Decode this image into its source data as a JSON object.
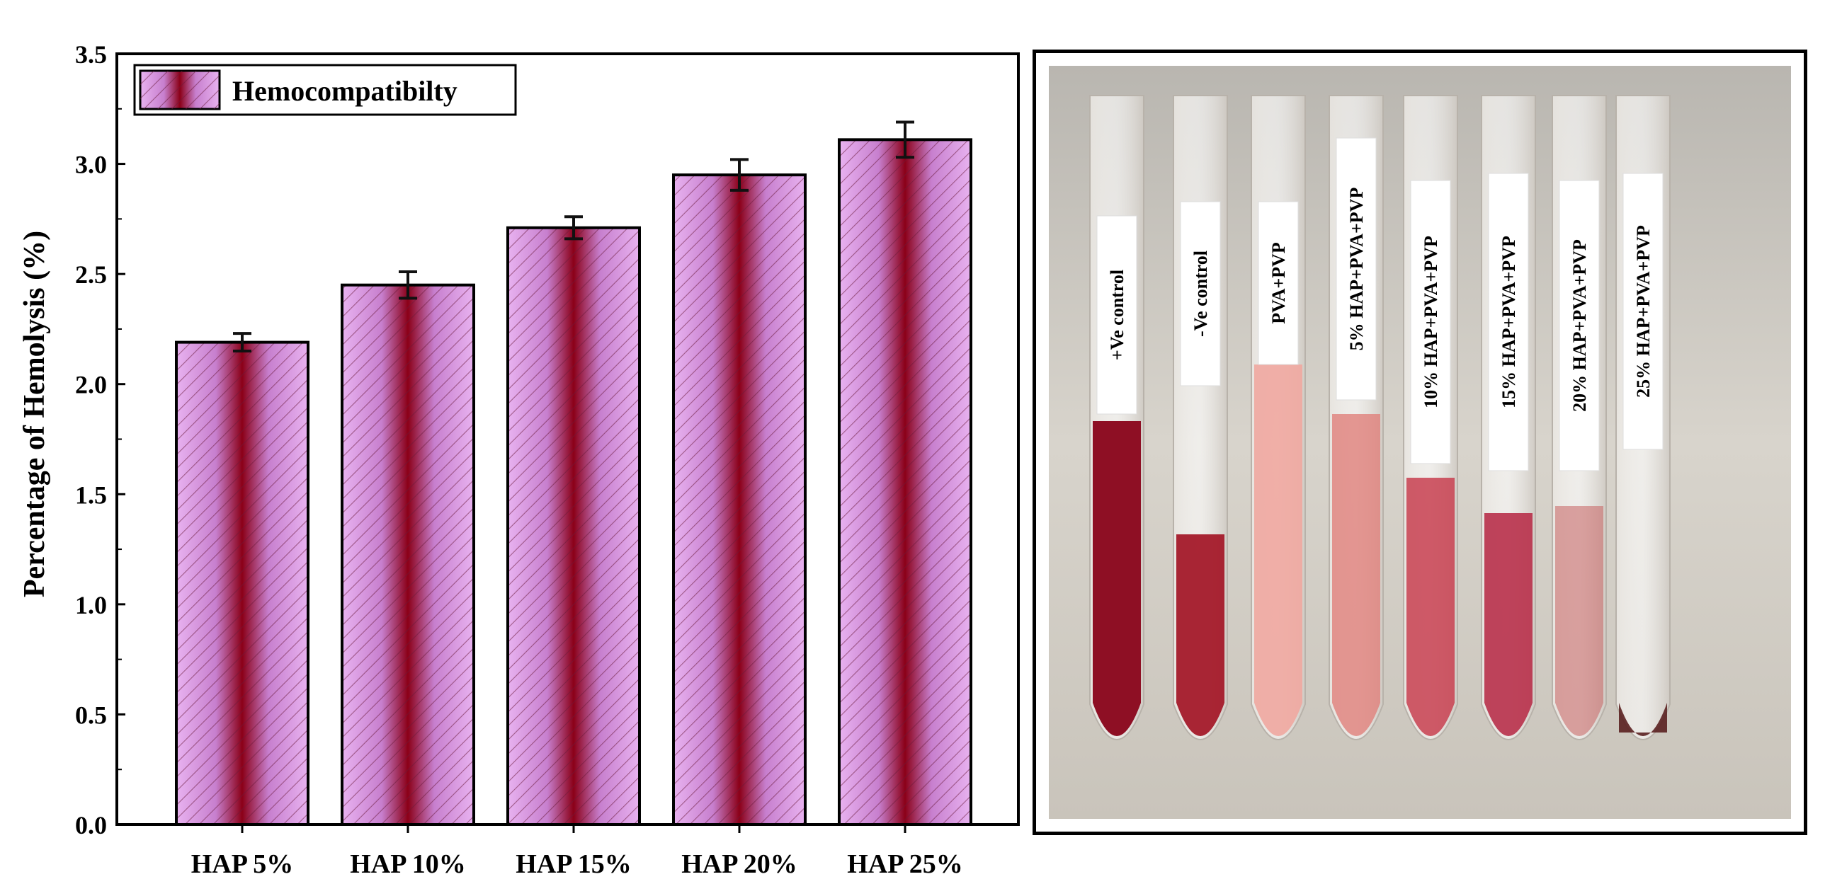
{
  "chart_data": {
    "type": "bar",
    "categories": [
      "HAP 5%",
      "HAP 10%",
      "HAP 15%",
      "HAP 20%",
      "HAP 25%"
    ],
    "series": [
      {
        "name": "Hemocompatibilty",
        "values": [
          2.19,
          2.45,
          2.71,
          2.95,
          3.11
        ],
        "errors": [
          0.04,
          0.06,
          0.05,
          0.07,
          0.08
        ]
      }
    ],
    "ylabel": "Percentage of Hemolysis (%)",
    "xlabel": "",
    "ylim": [
      0,
      3.5
    ],
    "yticks": [
      "0.0",
      "0.5",
      "1.0",
      "1.5",
      "2.0",
      "2.5",
      "3.0",
      "3.5"
    ],
    "legend_position": "top-left",
    "grid": false,
    "bar_fill": "#d99ae6",
    "bar_stripe": "#7a1030",
    "bar_center": "#8b0018"
  },
  "photo": {
    "tube_labels": [
      "+Ve control",
      "-Ve control",
      "PVA+PVP",
      "5% HAP+PVA+PVP",
      "10% HAP+PVA+PVP",
      "15% HAP+PVA+PVP",
      "20% HAP+PVA+PVP",
      "25% HAP+PVA+PVP"
    ]
  }
}
